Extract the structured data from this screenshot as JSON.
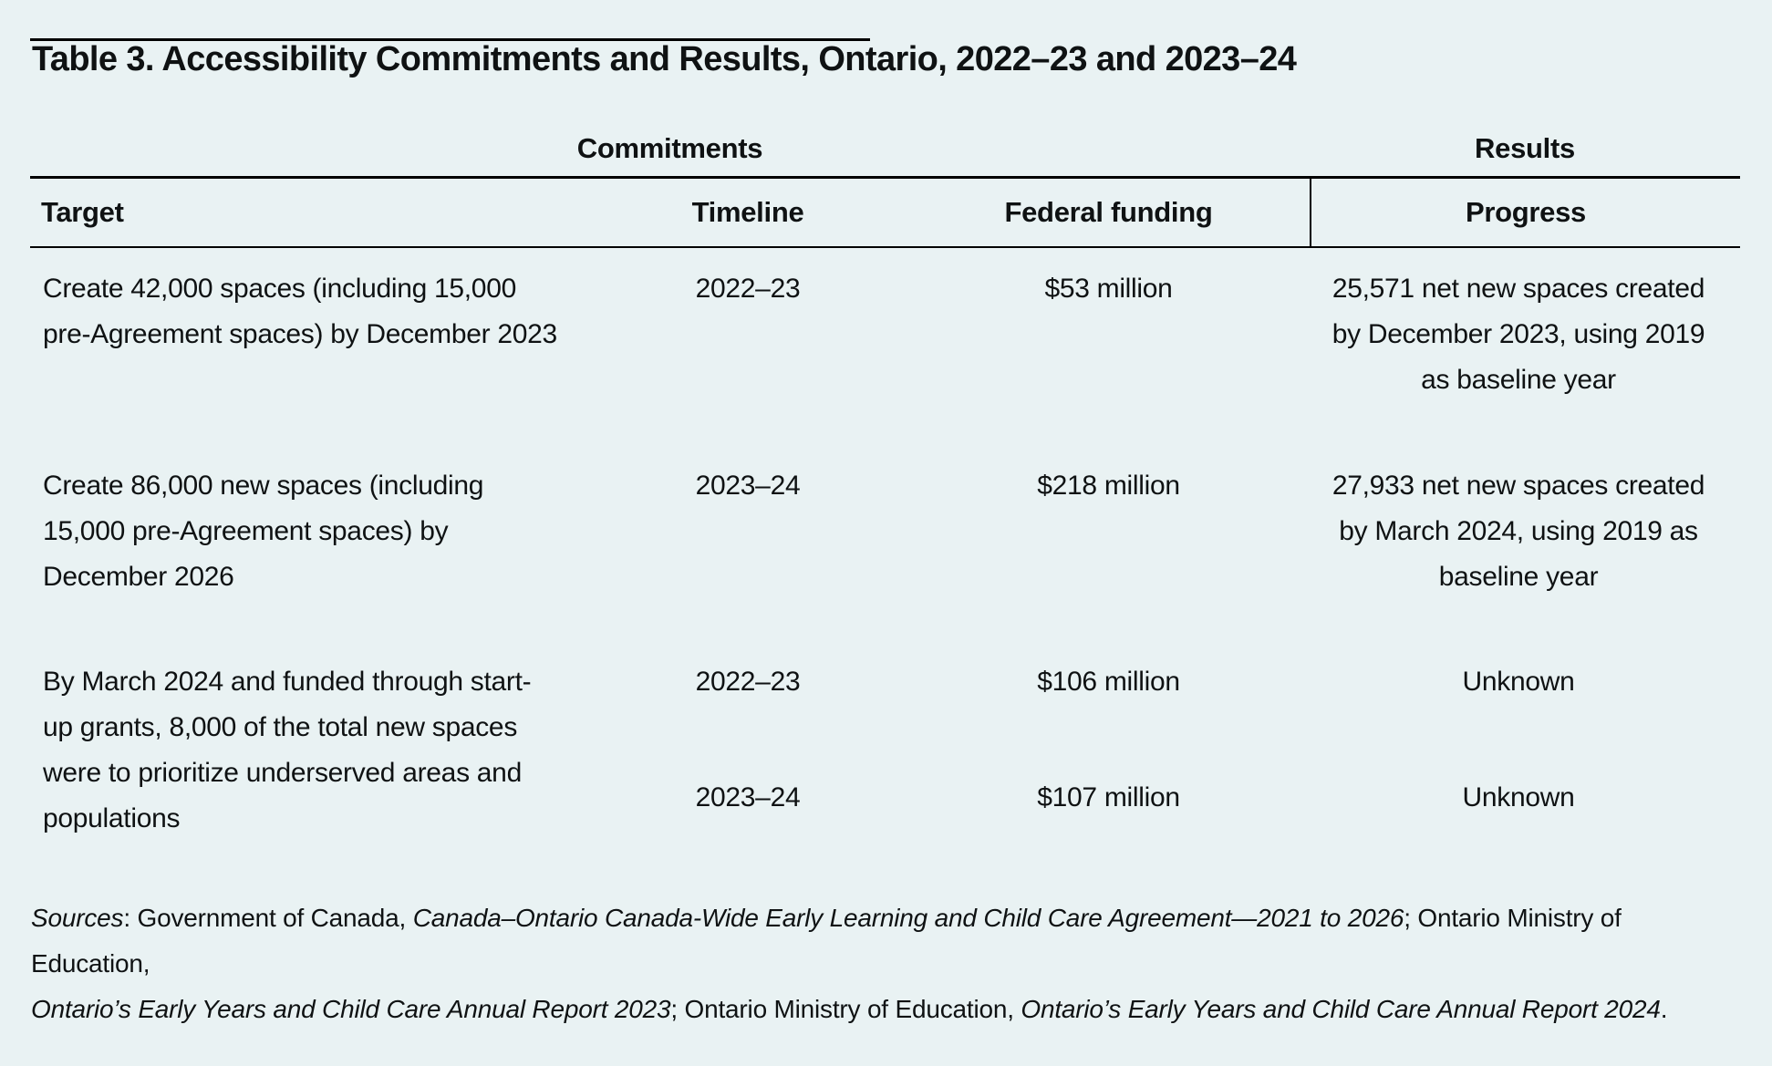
{
  "title": "Table 3. Accessibility Commitments and Results, Ontario, 2022–23 and 2023–24",
  "table": {
    "group_headers": {
      "commitments": "Commitments",
      "results": "Results"
    },
    "columns": {
      "target": "Target",
      "timeline": "Timeline",
      "funding": "Federal funding",
      "progress": "Progress"
    },
    "rows": [
      {
        "target": "Create 42,000 spaces (including 15,000\npre-Agreement spaces) by December 2023",
        "timeline": "2022–23",
        "funding": "$53 million",
        "progress": "25,571 net new spaces created\nby December 2023, using 2019\nas baseline year"
      },
      {
        "target": "Create 86,000 new spaces (including\n15,000 pre-Agreement spaces) by\nDecember 2026",
        "timeline": "2023–24",
        "funding": "$218 million",
        "progress": "27,933 net new spaces created\nby March 2024, using 2019 as\nbaseline year"
      },
      {
        "target": "By March 2024 and funded through start-\nup grants, 8,000 of the total new spaces\nwere to prioritize underserved areas and\npopulations",
        "subrows": [
          {
            "timeline": "2022–23",
            "funding": "$106 million",
            "progress": "Unknown"
          },
          {
            "timeline": "2023–24",
            "funding": "$107 million",
            "progress": "Unknown"
          }
        ]
      }
    ]
  },
  "footer": {
    "lines": [
      [
        {
          "text": "Sources",
          "italic": true
        },
        {
          "text": ": Government of Canada, ",
          "italic": false
        },
        {
          "text": "Canada–Ontario Canada-Wide Early Learning and Child Care Agreement—2021 to 2026",
          "italic": true
        },
        {
          "text": "; Ontario Ministry of Education,",
          "italic": false
        }
      ],
      [
        {
          "text": "Ontario’s Early Years and Child Care Annual Report 2023",
          "italic": true
        },
        {
          "text": "; Ontario Ministry of Education, ",
          "italic": false
        },
        {
          "text": "Ontario’s Early Years and Child Care Annual Report 2024",
          "italic": true
        },
        {
          "text": ".",
          "italic": false
        }
      ]
    ]
  },
  "colors": {
    "background": "#e9f2f3",
    "text": "#0f1213",
    "rule": "#000000"
  }
}
